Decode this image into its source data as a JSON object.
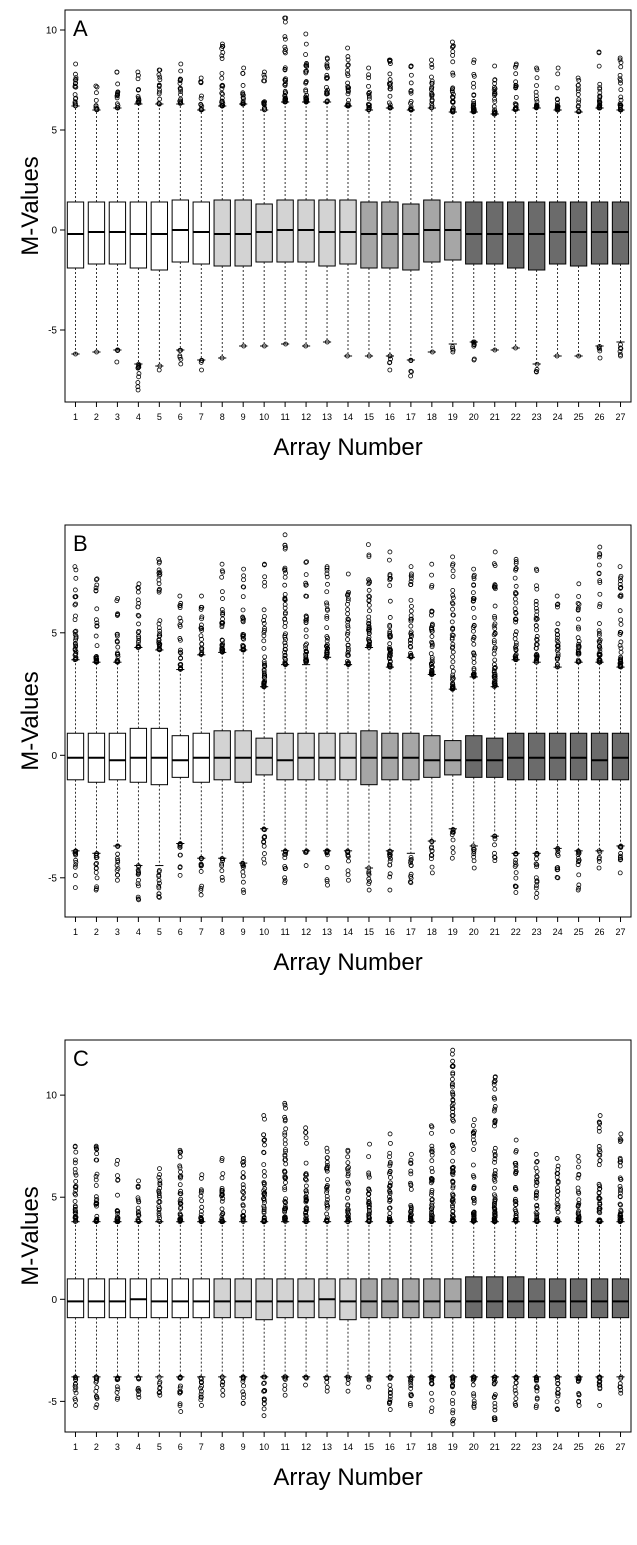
{
  "colors": {
    "group_white": "#ffffff",
    "group_light": "#d3d3d3",
    "group_mid": "#a6a6a6",
    "group_dark": "#6b6b6b",
    "ink": "#000000"
  },
  "chart_data": [
    {
      "type": "box",
      "panel_label": "A",
      "xlabel": "Array Number",
      "ylabel": "M-Values",
      "ylim": [
        -8.6,
        11.0
      ],
      "yticks": [
        -5,
        0,
        5,
        10
      ],
      "ytick_labels": [
        "-5",
        "0",
        "5",
        "10"
      ],
      "categories": [
        "1",
        "2",
        "3",
        "4",
        "5",
        "6",
        "7",
        "8",
        "9",
        "10",
        "11",
        "12",
        "13",
        "14",
        "15",
        "16",
        "17",
        "18",
        "19",
        "20",
        "21",
        "22",
        "23",
        "24",
        "25",
        "26",
        "27"
      ],
      "groups": [
        "white",
        "white",
        "white",
        "white",
        "white",
        "white",
        "white",
        "light",
        "light",
        "light",
        "light",
        "light",
        "light",
        "light",
        "mid",
        "mid",
        "mid",
        "mid",
        "mid",
        "dark",
        "dark",
        "dark",
        "dark",
        "dark",
        "dark",
        "dark",
        "dark"
      ],
      "q1": [
        -1.9,
        -1.7,
        -1.7,
        -1.9,
        -2.0,
        -1.6,
        -1.7,
        -1.8,
        -1.8,
        -1.6,
        -1.6,
        -1.6,
        -1.8,
        -1.7,
        -1.9,
        -1.9,
        -2.0,
        -1.6,
        -1.5,
        -1.7,
        -1.7,
        -1.9,
        -2.0,
        -1.7,
        -1.8,
        -1.7,
        -1.7
      ],
      "median": [
        -0.2,
        -0.1,
        -0.1,
        -0.2,
        -0.2,
        0.0,
        -0.1,
        -0.2,
        -0.2,
        -0.1,
        0.0,
        0.0,
        -0.1,
        -0.1,
        -0.2,
        -0.2,
        -0.2,
        0.0,
        0.0,
        -0.2,
        -0.2,
        -0.2,
        -0.2,
        -0.1,
        -0.1,
        -0.1,
        -0.1
      ],
      "q3": [
        1.4,
        1.4,
        1.4,
        1.4,
        1.4,
        1.5,
        1.4,
        1.5,
        1.5,
        1.3,
        1.5,
        1.5,
        1.5,
        1.5,
        1.4,
        1.4,
        1.3,
        1.5,
        1.4,
        1.4,
        1.4,
        1.4,
        1.4,
        1.4,
        1.4,
        1.4,
        1.4
      ],
      "wlow": [
        -6.2,
        -6.1,
        -6.0,
        -6.7,
        -6.8,
        -6.0,
        -6.5,
        -6.4,
        -5.8,
        -5.8,
        -5.7,
        -5.8,
        -5.6,
        -6.3,
        -6.3,
        -6.3,
        -6.5,
        -6.1,
        -5.7,
        -5.6,
        -6.0,
        -5.9,
        -6.7,
        -6.3,
        -6.3,
        -5.8,
        -5.6
      ],
      "whigh": [
        6.2,
        6.0,
        6.1,
        6.3,
        6.3,
        6.3,
        6.0,
        6.2,
        6.3,
        6.0,
        6.4,
        6.4,
        6.4,
        6.2,
        6.0,
        6.1,
        6.0,
        6.1,
        5.9,
        5.9,
        5.8,
        6.0,
        6.1,
        6.0,
        5.9,
        6.1,
        6.0
      ],
      "max_outlier": [
        8.3,
        7.2,
        7.9,
        7.9,
        8.0,
        8.3,
        7.6,
        9.3,
        8.1,
        7.9,
        10.6,
        9.8,
        8.6,
        9.1,
        8.1,
        8.5,
        8.2,
        8.5,
        9.4,
        8.5,
        8.2,
        8.3,
        8.1,
        8.1,
        7.6,
        8.9,
        8.6
      ],
      "min_outlier": [
        -6.2,
        -6.1,
        -6.6,
        -8.0,
        -7.0,
        -6.7,
        -7.0,
        -6.4,
        -5.8,
        -5.8,
        -5.7,
        -5.8,
        -5.6,
        -6.3,
        -6.3,
        -7.0,
        -7.3,
        -6.1,
        -6.1,
        -6.5,
        -6.0,
        -5.9,
        -7.1,
        -6.3,
        -6.3,
        -6.4,
        -6.3
      ]
    },
    {
      "type": "box",
      "panel_label": "B",
      "xlabel": "Array Number",
      "ylabel": "M-Values",
      "ylim": [
        -6.6,
        9.4
      ],
      "yticks": [
        -5,
        0,
        5
      ],
      "ytick_labels": [
        "-5",
        "0",
        "5"
      ],
      "categories": [
        "1",
        "2",
        "3",
        "4",
        "5",
        "6",
        "7",
        "8",
        "9",
        "10",
        "11",
        "12",
        "13",
        "14",
        "15",
        "16",
        "17",
        "18",
        "19",
        "20",
        "21",
        "22",
        "23",
        "24",
        "25",
        "26",
        "27"
      ],
      "groups": [
        "white",
        "white",
        "white",
        "white",
        "white",
        "white",
        "white",
        "light",
        "light",
        "light",
        "light",
        "light",
        "light",
        "light",
        "mid",
        "mid",
        "mid",
        "mid",
        "mid",
        "dark",
        "dark",
        "dark",
        "dark",
        "dark",
        "dark",
        "dark",
        "dark"
      ],
      "q1": [
        -1.0,
        -1.1,
        -1.0,
        -1.1,
        -1.2,
        -0.9,
        -1.1,
        -1.0,
        -1.1,
        -0.8,
        -1.0,
        -1.0,
        -1.0,
        -1.0,
        -1.2,
        -1.0,
        -1.0,
        -0.9,
        -0.8,
        -0.9,
        -0.9,
        -1.0,
        -1.0,
        -1.0,
        -1.0,
        -1.0,
        -1.0
      ],
      "median": [
        -0.1,
        -0.1,
        -0.2,
        -0.1,
        -0.1,
        -0.2,
        -0.1,
        -0.1,
        -0.1,
        -0.1,
        -0.2,
        -0.1,
        -0.1,
        -0.1,
        -0.1,
        -0.1,
        -0.1,
        -0.2,
        -0.2,
        -0.2,
        -0.2,
        -0.1,
        -0.1,
        -0.1,
        -0.1,
        -0.2,
        -0.1
      ],
      "q3": [
        0.9,
        0.9,
        0.9,
        1.1,
        1.1,
        0.8,
        0.9,
        1.0,
        1.0,
        0.7,
        0.9,
        0.9,
        0.9,
        0.9,
        1.0,
        0.9,
        0.9,
        0.8,
        0.6,
        0.8,
        0.7,
        0.9,
        0.9,
        0.9,
        0.9,
        0.9,
        0.9
      ],
      "wlow": [
        -3.9,
        -4.0,
        -3.7,
        -4.5,
        -4.5,
        -3.6,
        -4.2,
        -4.2,
        -4.4,
        -3.0,
        -3.9,
        -3.9,
        -3.9,
        -3.9,
        -4.6,
        -3.9,
        -4.0,
        -3.5,
        -3.0,
        -3.7,
        -3.3,
        -4.0,
        -4.0,
        -3.8,
        -3.9,
        -3.9,
        -3.7
      ],
      "whigh": [
        3.9,
        3.8,
        3.8,
        4.4,
        4.3,
        3.5,
        4.1,
        4.2,
        4.3,
        2.8,
        3.7,
        3.7,
        4.0,
        3.7,
        4.4,
        3.6,
        4.0,
        3.3,
        2.7,
        3.2,
        2.8,
        3.9,
        3.8,
        3.6,
        3.8,
        3.8,
        3.6
      ],
      "max_outlier": [
        7.7,
        7.2,
        6.4,
        7.0,
        8.0,
        6.5,
        6.5,
        7.8,
        7.6,
        7.8,
        9.0,
        7.9,
        7.7,
        7.4,
        8.6,
        8.3,
        7.7,
        7.8,
        8.1,
        7.6,
        8.3,
        8.0,
        7.6,
        6.5,
        7.0,
        8.5,
        7.7
      ],
      "min_outlier": [
        -5.4,
        -5.5,
        -5.1,
        -5.9,
        -5.8,
        -4.9,
        -5.7,
        -5.1,
        -5.6,
        -4.4,
        -5.2,
        -4.5,
        -5.3,
        -5.1,
        -5.5,
        -5.5,
        -5.2,
        -4.8,
        -4.2,
        -4.6,
        -4.3,
        -5.6,
        -5.8,
        -5.0,
        -5.5,
        -4.6,
        -4.8
      ]
    },
    {
      "type": "box",
      "panel_label": "C",
      "xlabel": "Array Number",
      "ylabel": "M-Values",
      "ylim": [
        -6.5,
        12.7
      ],
      "yticks": [
        -5,
        0,
        5,
        10
      ],
      "ytick_labels": [
        "-5",
        "0",
        "5",
        "10"
      ],
      "categories": [
        "1",
        "2",
        "3",
        "4",
        "5",
        "6",
        "7",
        "8",
        "9",
        "10",
        "11",
        "12",
        "13",
        "14",
        "15",
        "16",
        "17",
        "18",
        "19",
        "20",
        "21",
        "22",
        "23",
        "24",
        "25",
        "26",
        "27"
      ],
      "groups": [
        "white",
        "white",
        "white",
        "white",
        "white",
        "white",
        "white",
        "light",
        "light",
        "light",
        "light",
        "light",
        "light",
        "light",
        "mid",
        "mid",
        "mid",
        "mid",
        "mid",
        "dark",
        "dark",
        "dark",
        "dark",
        "dark",
        "dark",
        "dark",
        "dark"
      ],
      "q1": [
        -0.9,
        -0.9,
        -0.9,
        -0.9,
        -0.9,
        -0.9,
        -0.9,
        -0.9,
        -0.9,
        -1.0,
        -0.9,
        -0.9,
        -0.9,
        -1.0,
        -0.9,
        -0.9,
        -0.9,
        -0.9,
        -0.9,
        -0.9,
        -0.9,
        -0.9,
        -0.9,
        -0.9,
        -0.9,
        -0.9,
        -0.9
      ],
      "median": [
        -0.1,
        -0.1,
        -0.1,
        0.0,
        -0.1,
        -0.1,
        -0.1,
        -0.1,
        -0.1,
        -0.1,
        -0.1,
        -0.1,
        0.0,
        -0.1,
        -0.1,
        -0.1,
        -0.1,
        -0.1,
        -0.1,
        -0.1,
        -0.1,
        -0.1,
        -0.1,
        -0.1,
        -0.1,
        -0.1,
        -0.1
      ],
      "q3": [
        1.0,
        1.0,
        1.0,
        1.0,
        1.0,
        1.0,
        1.0,
        1.0,
        1.0,
        1.0,
        1.0,
        1.0,
        1.0,
        1.0,
        1.0,
        1.0,
        1.0,
        1.0,
        1.0,
        1.1,
        1.1,
        1.1,
        1.0,
        1.0,
        1.0,
        1.0,
        1.0
      ],
      "wlow": [
        -3.8,
        -3.8,
        -3.8,
        -3.8,
        -3.8,
        -3.8,
        -3.8,
        -3.8,
        -3.8,
        -3.8,
        -3.8,
        -3.8,
        -3.8,
        -3.8,
        -3.8,
        -3.8,
        -3.8,
        -3.8,
        -3.8,
        -3.8,
        -3.8,
        -3.8,
        -3.8,
        -3.8,
        -3.8,
        -3.8,
        -3.8
      ],
      "whigh": [
        3.8,
        3.8,
        3.8,
        3.8,
        3.8,
        3.8,
        3.8,
        3.8,
        3.8,
        3.8,
        3.8,
        3.8,
        3.8,
        3.8,
        3.8,
        3.8,
        3.8,
        3.8,
        3.8,
        3.8,
        3.8,
        3.8,
        3.8,
        3.8,
        3.8,
        3.8,
        3.8
      ],
      "max_outlier": [
        7.5,
        7.5,
        6.8,
        5.8,
        6.4,
        7.3,
        6.1,
        6.9,
        6.9,
        9.0,
        9.6,
        8.4,
        7.4,
        7.3,
        7.6,
        8.1,
        7.1,
        8.5,
        12.2,
        8.8,
        10.9,
        7.8,
        7.1,
        6.9,
        7.0,
        9.0,
        8.1
      ],
      "min_outlier": [
        -5.2,
        -5.3,
        -4.9,
        -4.8,
        -4.7,
        -5.5,
        -5.2,
        -4.7,
        -5.1,
        -5.7,
        -4.7,
        -4.2,
        -4.5,
        -4.5,
        -4.3,
        -5.4,
        -5.2,
        -5.5,
        -6.1,
        -5.3,
        -5.9,
        -5.2,
        -5.3,
        -5.4,
        -5.2,
        -5.2,
        -4.6
      ]
    }
  ]
}
